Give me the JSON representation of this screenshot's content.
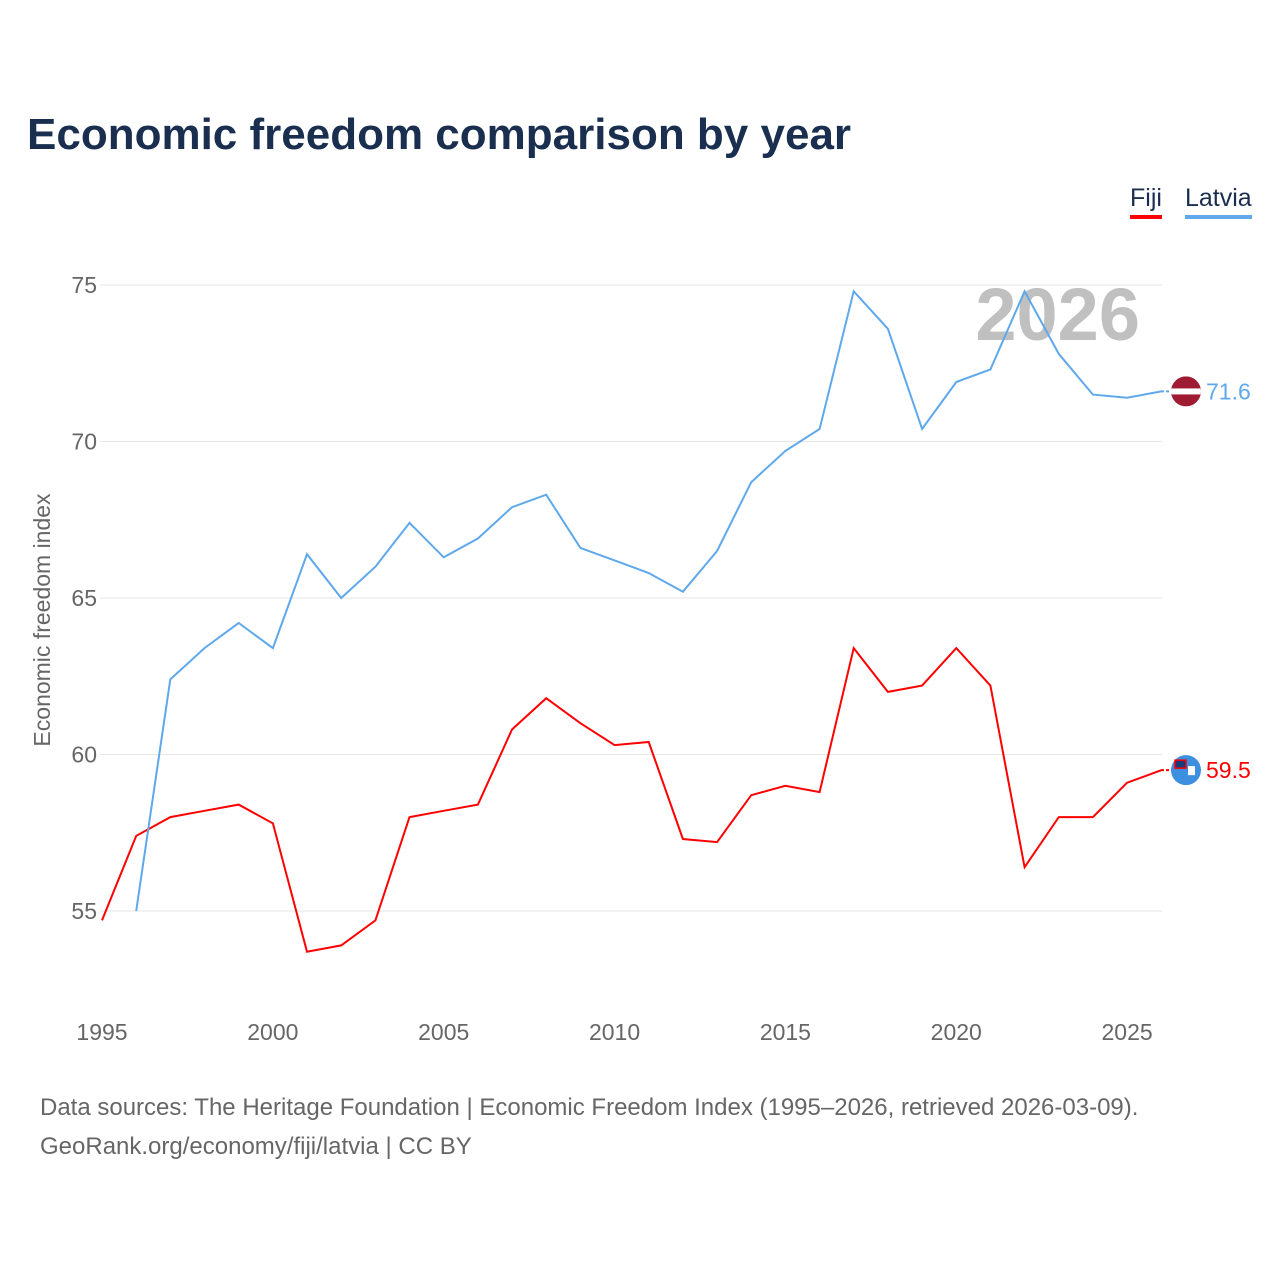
{
  "chart_data": {
    "type": "line",
    "title": "Economic freedom comparison by year",
    "xlabel": "",
    "ylabel": "Economic freedom index",
    "xlim": [
      1995,
      2026
    ],
    "ylim": [
      52,
      76
    ],
    "x_ticks": [
      "1995",
      "2000",
      "2005",
      "2010",
      "2015",
      "2020",
      "2025"
    ],
    "y_ticks": [
      "55",
      "60",
      "65",
      "70",
      "75"
    ],
    "year_watermark": "2026",
    "legend": [
      "Fiji",
      "Latvia"
    ],
    "legend_position": "top-right",
    "grid": true,
    "series": [
      {
        "name": "Fiji",
        "color": "#ff0000",
        "end_label": "59.5",
        "x": [
          1995,
          1996,
          1997,
          1998,
          1999,
          2000,
          2001,
          2002,
          2003,
          2004,
          2005,
          2006,
          2007,
          2008,
          2009,
          2010,
          2011,
          2012,
          2013,
          2014,
          2015,
          2016,
          2017,
          2018,
          2019,
          2020,
          2021,
          2022,
          2023,
          2024,
          2025,
          2026
        ],
        "values": [
          54.7,
          57.4,
          58.0,
          58.2,
          58.4,
          57.8,
          53.7,
          53.9,
          54.7,
          58.0,
          58.2,
          58.4,
          60.8,
          61.8,
          61.0,
          60.3,
          60.4,
          57.3,
          57.2,
          58.7,
          59.0,
          58.8,
          63.4,
          62.0,
          62.2,
          63.4,
          62.2,
          56.4,
          58.0,
          58.0,
          59.1,
          59.5
        ]
      },
      {
        "name": "Latvia",
        "color": "#5fa8ec",
        "end_label": "71.6",
        "x": [
          1996,
          1997,
          1998,
          1999,
          2000,
          2001,
          2002,
          2003,
          2004,
          2005,
          2006,
          2007,
          2008,
          2009,
          2010,
          2011,
          2012,
          2013,
          2014,
          2015,
          2016,
          2017,
          2018,
          2019,
          2020,
          2021,
          2022,
          2023,
          2024,
          2025,
          2026
        ],
        "values": [
          55.0,
          62.4,
          63.4,
          64.2,
          63.4,
          66.4,
          65.0,
          66.0,
          67.4,
          66.3,
          66.9,
          67.9,
          68.3,
          66.6,
          66.2,
          65.8,
          65.2,
          66.5,
          68.7,
          69.7,
          70.4,
          74.8,
          73.6,
          70.4,
          71.9,
          72.3,
          74.8,
          72.8,
          71.5,
          71.4,
          71.6
        ]
      }
    ]
  },
  "source_line1": "Data sources: The Heritage Foundation | Economic Freedom Index (1995–2026, retrieved 2026-03-09).",
  "source_line2": "GeoRank.org/economy/fiji/latvia | CC BY"
}
